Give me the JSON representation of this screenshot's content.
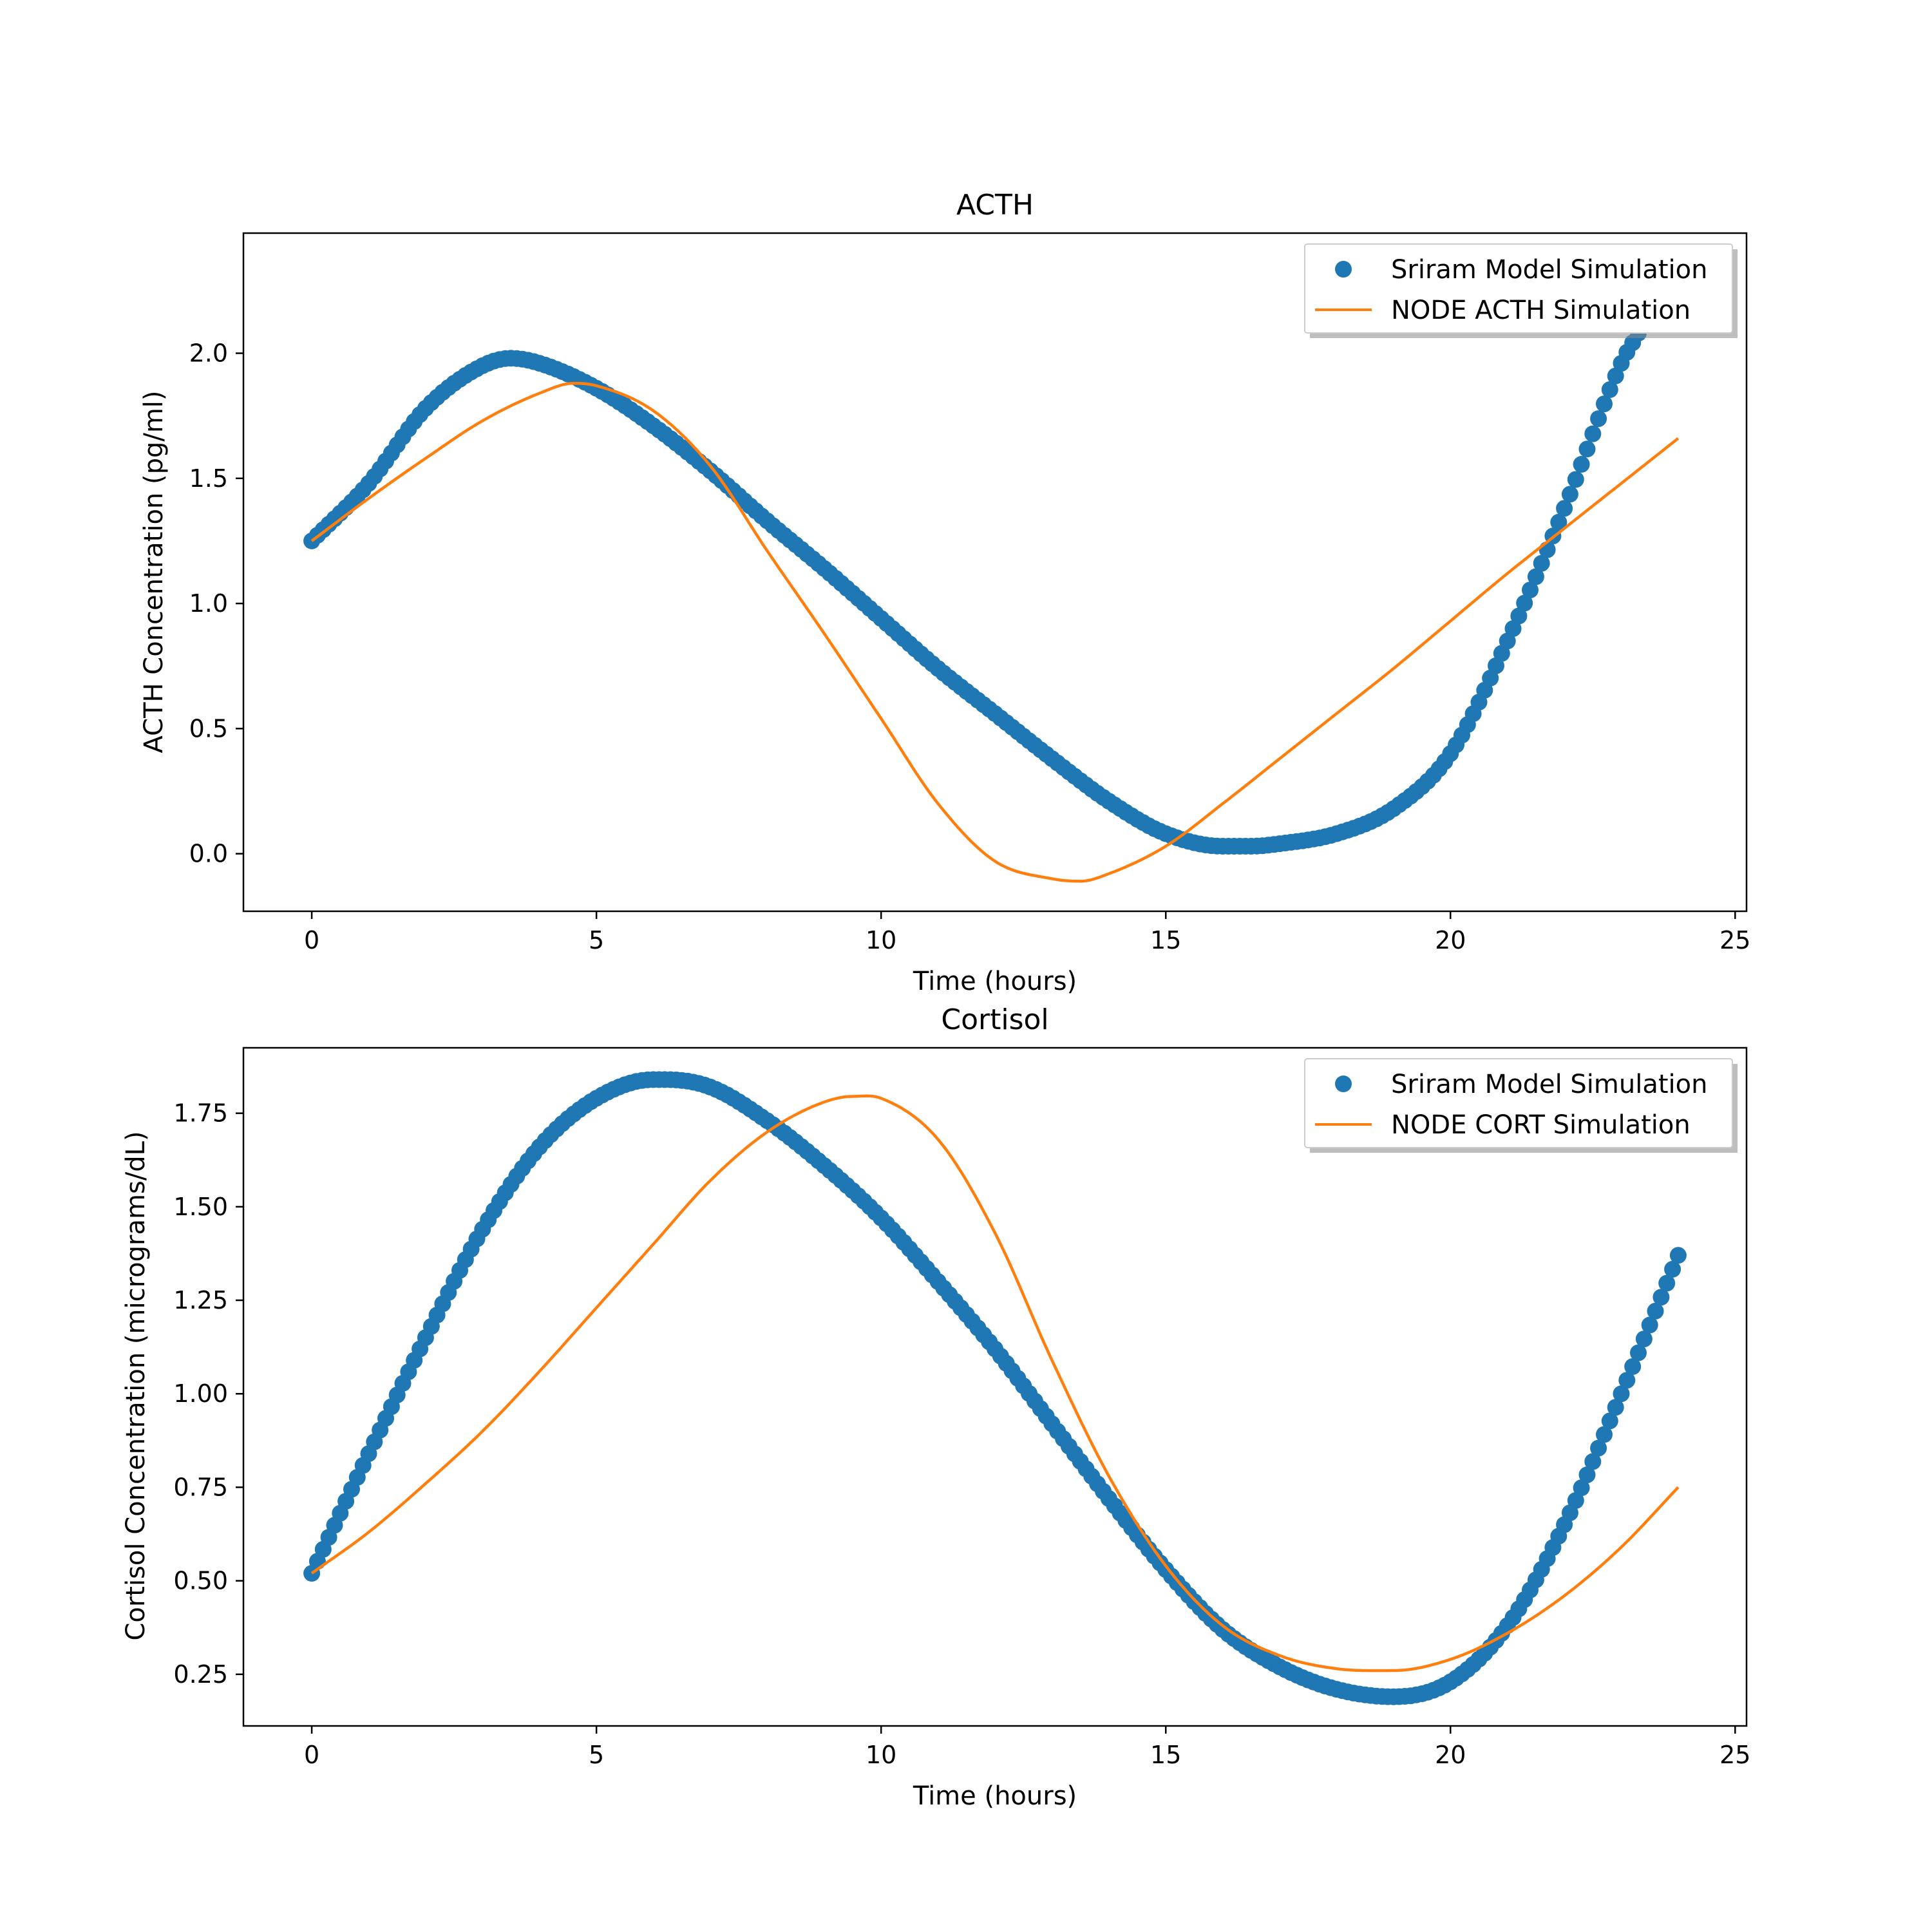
{
  "chart_data": [
    {
      "type": "line",
      "title": "ACTH",
      "xlabel": "Time (hours)",
      "ylabel": "ACTH Concentration (pg/ml)",
      "xlim": [
        -1.2,
        25.2
      ],
      "ylim": [
        -0.23,
        2.48
      ],
      "xticks": [
        0,
        5,
        10,
        15,
        20,
        25
      ],
      "yticks": [
        0.0,
        0.5,
        1.0,
        1.5,
        2.0
      ],
      "ytick_labels": [
        "0.0",
        "0.5",
        "1.0",
        "1.5",
        "2.0"
      ],
      "legend_position": "upper right",
      "series": [
        {
          "name": "Sriram Model Simulation",
          "style": "markers",
          "color": "#1f77b4",
          "x": [
            0,
            1,
            2,
            3,
            3.5,
            4,
            5,
            6,
            7,
            8,
            9,
            10,
            11,
            12,
            13,
            14,
            15,
            16,
            16.5,
            17,
            18,
            19,
            20,
            21,
            22,
            23,
            23.3
          ],
          "y": [
            1.25,
            1.48,
            1.78,
            1.95,
            1.98,
            1.96,
            1.86,
            1.71,
            1.53,
            1.33,
            1.14,
            0.94,
            0.74,
            0.56,
            0.38,
            0.21,
            0.08,
            0.03,
            0.03,
            0.04,
            0.08,
            0.18,
            0.4,
            0.85,
            1.38,
            1.96,
            2.08
          ]
        },
        {
          "name": "NODE ACTH Simulation",
          "style": "line",
          "color": "#ff7f0e",
          "x": [
            0,
            1,
            2,
            3,
            4,
            4.6,
            5,
            6,
            7,
            8,
            9,
            10,
            11,
            12,
            13,
            13.5,
            14,
            15,
            16,
            17,
            18,
            19,
            20,
            21,
            22,
            23,
            24
          ],
          "y": [
            1.25,
            1.42,
            1.58,
            1.73,
            1.84,
            1.88,
            1.87,
            1.77,
            1.55,
            1.21,
            0.88,
            0.54,
            0.2,
            -0.03,
            -0.1,
            -0.11,
            -0.08,
            0.03,
            0.2,
            0.38,
            0.56,
            0.74,
            0.93,
            1.12,
            1.3,
            1.48,
            1.66
          ]
        }
      ]
    },
    {
      "type": "line",
      "title": "Cortisol",
      "xlabel": "Time (hours)",
      "ylabel": "Cortisol Concentration (micrograms/dL)",
      "xlim": [
        -1.2,
        25.2
      ],
      "ylim": [
        0.112,
        1.925
      ],
      "xticks": [
        0,
        5,
        10,
        15,
        20,
        25
      ],
      "yticks": [
        0.25,
        0.5,
        0.75,
        1.0,
        1.25,
        1.5,
        1.75
      ],
      "ytick_labels": [
        "0.25",
        "0.50",
        "0.75",
        "1.00",
        "1.25",
        "1.50",
        "1.75"
      ],
      "legend_position": "upper right",
      "series": [
        {
          "name": "Sriram Model Simulation",
          "style": "markers",
          "color": "#1f77b4",
          "x": [
            0,
            1,
            2,
            3,
            4,
            5,
            6,
            6.2,
            7,
            8,
            9,
            10,
            11,
            12,
            13,
            14,
            15,
            16,
            17,
            18,
            19,
            20,
            21,
            22,
            23,
            24
          ],
          "y": [
            0.52,
            0.84,
            1.15,
            1.44,
            1.66,
            1.79,
            1.84,
            1.84,
            1.82,
            1.73,
            1.61,
            1.47,
            1.3,
            1.12,
            0.92,
            0.72,
            0.53,
            0.37,
            0.27,
            0.21,
            0.19,
            0.23,
            0.38,
            0.65,
            1.0,
            1.37
          ]
        },
        {
          "name": "NODE CORT Simulation",
          "style": "line",
          "color": "#ff7f0e",
          "x": [
            0,
            1,
            2,
            3,
            4,
            5,
            6,
            7,
            8,
            9,
            9.5,
            10,
            11,
            12,
            13,
            14,
            15,
            16,
            17,
            18,
            19,
            20,
            21,
            22,
            23,
            24
          ],
          "y": [
            0.52,
            0.63,
            0.76,
            0.9,
            1.06,
            1.23,
            1.4,
            1.57,
            1.7,
            1.78,
            1.795,
            1.79,
            1.68,
            1.43,
            1.09,
            0.78,
            0.54,
            0.38,
            0.3,
            0.265,
            0.26,
            0.29,
            0.36,
            0.46,
            0.59,
            0.75
          ]
        }
      ]
    }
  ]
}
